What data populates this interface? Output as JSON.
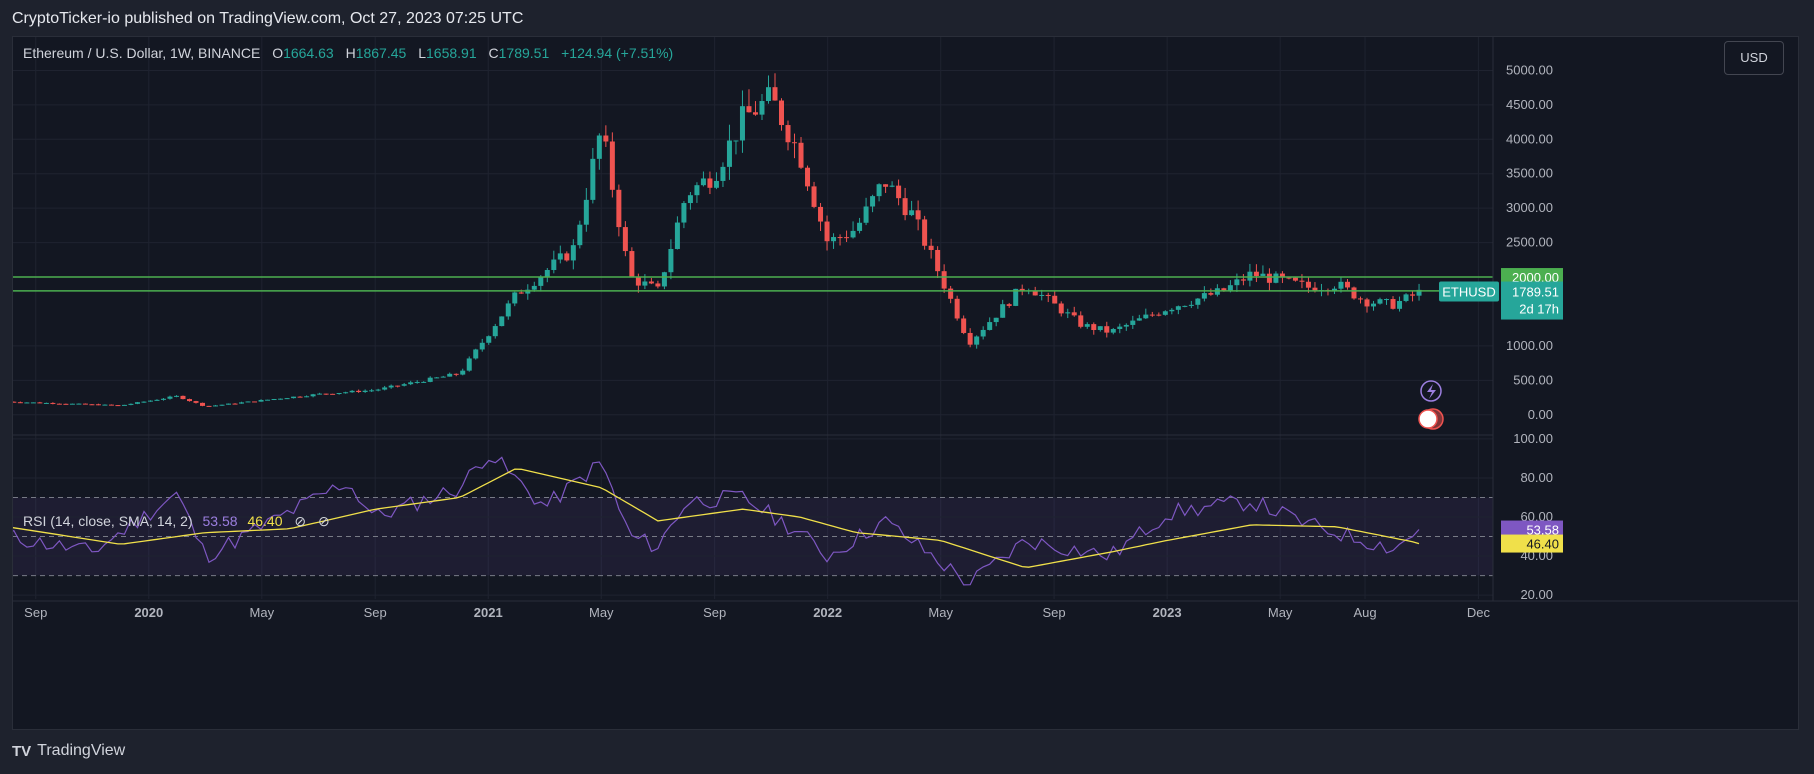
{
  "publish_line": "CryptoTicker-io published on TradingView.com, Oct 27, 2023 07:25 UTC",
  "footer_brand": "TradingView",
  "footer_logo": "TV",
  "currency_button": "USD",
  "legend": {
    "symbol": "Ethereum / U.S. Dollar, 1W, BINANCE",
    "open_label": "O",
    "open": "1664.63",
    "high_label": "H",
    "high": "1867.45",
    "low_label": "L",
    "low": "1658.91",
    "close_label": "C",
    "close": "1789.51",
    "change": "+124.94 (+7.51%)"
  },
  "rsi_legend": {
    "label": "RSI (14, close, SMA, 14, 2)",
    "rsi": "53.58",
    "sma": "46.40",
    "icons": [
      "⊘",
      "⊘"
    ]
  },
  "colors": {
    "up": "#26a69a",
    "down": "#ef5350",
    "rsi": "#7e57c2",
    "sma": "#f0e04a",
    "level": "#4caf50",
    "bg": "#131722"
  },
  "chart_data": [
    {
      "type": "candlestick",
      "title": "Ethereum / U.S. Dollar, 1W, BINANCE",
      "x_ticks": [
        "Sep",
        "2020",
        "May",
        "Sep",
        "2021",
        "May",
        "Sep",
        "2022",
        "May",
        "Sep",
        "2023",
        "May",
        "Aug",
        "Dec"
      ],
      "y_ticks": [
        "5000.00",
        "4500.00",
        "4000.00",
        "3500.00",
        "3000.00",
        "2500.00",
        "1000.00",
        "500.00",
        "0.00"
      ],
      "ylim": [
        -250,
        5050
      ],
      "horizontal_levels": [
        {
          "label": "2000.00",
          "value": 2000
        },
        {
          "label": "1800.00",
          "value": 1800
        }
      ],
      "last_price_label": {
        "symbol": "ETHUSD",
        "value": "1789.51",
        "countdown": "2d 17h"
      },
      "series_anchor_points": [
        [
          "2019-08",
          190
        ],
        [
          "2019-12",
          135
        ],
        [
          "2020-02",
          270
        ],
        [
          "2020-03",
          120
        ],
        [
          "2020-07",
          300
        ],
        [
          "2020-09",
          360
        ],
        [
          "2020-12",
          600
        ],
        [
          "2021-02",
          1750
        ],
        [
          "2021-04",
          2400
        ],
        [
          "2021-05",
          4150
        ],
        [
          "2021-06",
          2000
        ],
        [
          "2021-07",
          1800
        ],
        [
          "2021-08",
          3200
        ],
        [
          "2021-09",
          3500
        ],
        [
          "2021-10",
          4300
        ],
        [
          "2021-11",
          4600
        ],
        [
          "2021-12",
          3800
        ],
        [
          "2022-01",
          2500
        ],
        [
          "2022-02",
          2700
        ],
        [
          "2022-03",
          3400
        ],
        [
          "2022-04",
          2900
        ],
        [
          "2022-05",
          2000
        ],
        [
          "2022-06",
          1050
        ],
        [
          "2022-08",
          1900
        ],
        [
          "2022-10",
          1300
        ],
        [
          "2022-11",
          1200
        ],
        [
          "2023-01",
          1550
        ],
        [
          "2023-03",
          1800
        ],
        [
          "2023-04",
          2050
        ],
        [
          "2023-06",
          1850
        ],
        [
          "2023-07",
          1900
        ],
        [
          "2023-08",
          1650
        ],
        [
          "2023-09",
          1600
        ],
        [
          "2023-10",
          1789.51
        ]
      ]
    },
    {
      "type": "line",
      "title": "RSI (14, close, SMA, 14, 2)",
      "y_ticks": [
        "100.00",
        "80.00",
        "60.00",
        "40.00",
        "20.00"
      ],
      "ylim": [
        18,
        102
      ],
      "bands": [
        70,
        50,
        30
      ],
      "current_values": [
        {
          "name": "RSI",
          "value": "53.58"
        },
        {
          "name": "SMA",
          "value": "46.40"
        }
      ],
      "series": [
        {
          "name": "RSI",
          "anchor_points": [
            [
              "2019-08",
              50
            ],
            [
              "2019-11",
              42
            ],
            [
              "2020-02",
              72
            ],
            [
              "2020-03",
              40
            ],
            [
              "2020-05",
              55
            ],
            [
              "2020-08",
              78
            ],
            [
              "2020-09",
              60
            ],
            [
              "2020-12",
              75
            ],
            [
              "2021-01",
              93
            ],
            [
              "2021-03",
              65
            ],
            [
              "2021-05",
              88
            ],
            [
              "2021-06",
              50
            ],
            [
              "2021-07",
              45
            ],
            [
              "2021-08",
              68
            ],
            [
              "2021-10",
              70
            ],
            [
              "2021-12",
              52
            ],
            [
              "2022-01",
              40
            ],
            [
              "2022-03",
              58
            ],
            [
              "2022-06",
              26
            ],
            [
              "2022-08",
              48
            ],
            [
              "2022-11",
              40
            ],
            [
              "2023-01",
              62
            ],
            [
              "2023-04",
              68
            ],
            [
              "2023-06",
              56
            ],
            [
              "2023-09",
              44
            ],
            [
              "2023-10",
              53.58
            ]
          ]
        },
        {
          "name": "SMA",
          "anchor_points": [
            [
              "2019-08",
              55
            ],
            [
              "2019-12",
              46
            ],
            [
              "2020-03",
              52
            ],
            [
              "2020-06",
              54
            ],
            [
              "2020-09",
              64
            ],
            [
              "2020-12",
              70
            ],
            [
              "2021-02",
              85
            ],
            [
              "2021-05",
              75
            ],
            [
              "2021-07",
              58
            ],
            [
              "2021-10",
              64
            ],
            [
              "2021-12",
              60
            ],
            [
              "2022-02",
              52
            ],
            [
              "2022-05",
              48
            ],
            [
              "2022-08",
              34
            ],
            [
              "2022-11",
              42
            ],
            [
              "2023-01",
              48
            ],
            [
              "2023-04",
              56
            ],
            [
              "2023-07",
              55
            ],
            [
              "2023-10",
              46.4
            ]
          ]
        }
      ]
    }
  ]
}
